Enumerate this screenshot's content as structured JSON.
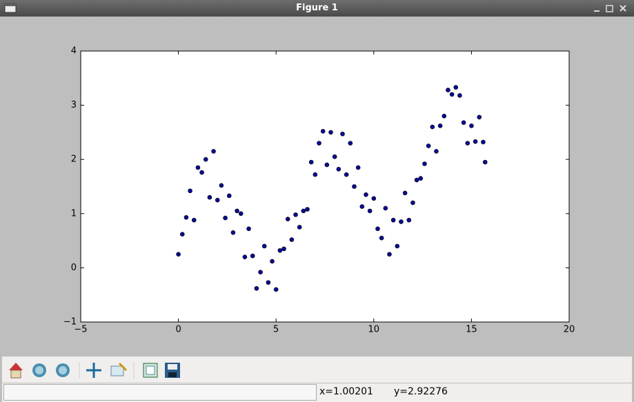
{
  "window": {
    "title": "Figure 1"
  },
  "status": {
    "x": "x=1.00201",
    "y": "y=2.92276"
  },
  "chart_data": {
    "type": "scatter",
    "color": "#0a0a96",
    "x": [
      0,
      0.2,
      0.4,
      0.6,
      0.8,
      1.0,
      1.2,
      1.4,
      1.6,
      1.8,
      2.0,
      2.2,
      2.4,
      2.6,
      2.8,
      3.0,
      3.2,
      3.4,
      3.6,
      3.8,
      4.0,
      4.2,
      4.4,
      4.6,
      4.8,
      5.0,
      5.2,
      5.4,
      5.6,
      5.8,
      6.0,
      6.2,
      6.4,
      6.6,
      6.8,
      7.0,
      7.2,
      7.4,
      7.6,
      7.8,
      8.0,
      8.2,
      8.4,
      8.6,
      8.8,
      9.0,
      9.2,
      9.4,
      9.6,
      9.8,
      10.0,
      10.2,
      10.4,
      10.6,
      10.8,
      11.0,
      11.2,
      11.4,
      11.6,
      11.8,
      12.0,
      12.2,
      12.4,
      12.6,
      12.8,
      13.0,
      13.2,
      13.4,
      13.6,
      13.8,
      14.0,
      14.2,
      14.4,
      14.6,
      14.8,
      15.0,
      15.2,
      15.4,
      15.6,
      15.7
    ],
    "y": [
      0.25,
      0.62,
      0.93,
      1.42,
      0.88,
      1.85,
      1.76,
      2.0,
      1.3,
      2.15,
      1.25,
      1.52,
      0.92,
      1.33,
      0.65,
      1.05,
      1.0,
      0.2,
      0.72,
      0.22,
      -0.38,
      -0.08,
      0.4,
      -0.27,
      0.12,
      -0.4,
      0.32,
      0.35,
      0.9,
      0.52,
      0.98,
      0.75,
      1.05,
      1.08,
      1.95,
      1.72,
      2.3,
      2.52,
      1.9,
      2.5,
      2.05,
      1.82,
      2.47,
      1.72,
      2.3,
      1.5,
      1.85,
      1.13,
      1.35,
      1.05,
      1.28,
      0.72,
      0.55,
      1.1,
      0.25,
      0.88,
      0.4,
      0.85,
      1.38,
      0.88,
      1.2,
      1.62,
      1.65,
      1.92,
      2.25,
      2.6,
      2.15,
      2.62,
      2.8,
      3.28,
      3.2,
      3.33,
      3.18,
      2.68,
      2.3,
      2.62,
      2.33,
      2.78,
      2.32,
      1.95
    ],
    "xlim": [
      -5,
      20
    ],
    "ylim": [
      -1,
      4
    ],
    "xticks": [
      {
        "value": -5,
        "label": "−5"
      },
      0,
      5,
      10,
      15,
      20
    ],
    "yticks": [
      {
        "value": -1,
        "label": "−1"
      },
      0,
      1,
      2,
      3,
      4
    ]
  }
}
